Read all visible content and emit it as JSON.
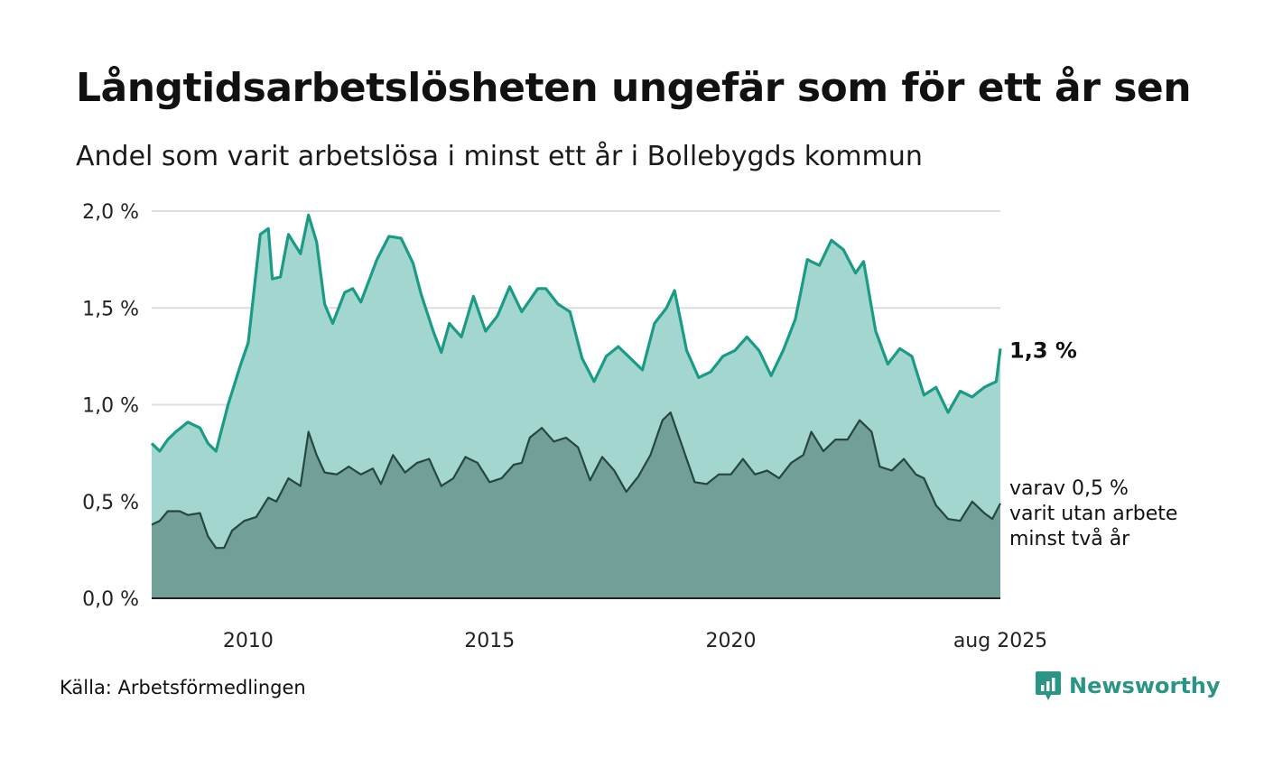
{
  "header": {
    "title": "Långtidsarbetslösheten ungefär som för ett år sen",
    "subtitle": "Andel som varit arbetslösa i minst ett år i Bollebygds kommun"
  },
  "footer": {
    "source": "Källa: Arbetsförmedlingen",
    "brand": "Newsworthy",
    "brand_icon": "newsworthy-logo-icon"
  },
  "colors": {
    "upper_line": "#1a9b86",
    "upper_fill": "#a3d6cf",
    "lower_line": "#26473f",
    "lower_fill": "#729f97",
    "grid": "#dddddd",
    "brand": "#2a9584"
  },
  "chart_data": {
    "type": "area",
    "x_start": "2008-01",
    "x_end": "2025-08",
    "x_interval": "month",
    "x_ticks": [
      {
        "date": "2010-01",
        "label": "2010"
      },
      {
        "date": "2015-01",
        "label": "2015"
      },
      {
        "date": "2020-01",
        "label": "2020"
      },
      {
        "date": "2025-08",
        "label": "aug 2025"
      }
    ],
    "ylim": [
      0,
      2.0
    ],
    "y_ticks": [
      {
        "value": 0.0,
        "label": "0,0 %"
      },
      {
        "value": 0.5,
        "label": "0,5 %"
      },
      {
        "value": 1.0,
        "label": "1,0 %"
      },
      {
        "value": 1.5,
        "label": "1,5 %"
      },
      {
        "value": 2.0,
        "label": "2,0 %"
      }
    ],
    "grid": true,
    "series": [
      {
        "key": "minst_ett_ar",
        "anchors": [
          [
            "2008-01",
            0.8
          ],
          [
            "2008-03",
            0.76
          ],
          [
            "2008-05",
            0.82
          ],
          [
            "2008-07",
            0.86
          ],
          [
            "2008-10",
            0.91
          ],
          [
            "2009-01",
            0.88
          ],
          [
            "2009-03",
            0.8
          ],
          [
            "2009-05",
            0.76
          ],
          [
            "2009-08",
            1.0
          ],
          [
            "2009-11",
            1.2
          ],
          [
            "2010-01",
            1.32
          ],
          [
            "2010-04",
            1.88
          ],
          [
            "2010-06",
            1.91
          ],
          [
            "2010-07",
            1.65
          ],
          [
            "2010-09",
            1.66
          ],
          [
            "2010-11",
            1.88
          ],
          [
            "2011-02",
            1.78
          ],
          [
            "2011-04",
            1.98
          ],
          [
            "2011-06",
            1.84
          ],
          [
            "2011-08",
            1.52
          ],
          [
            "2011-10",
            1.42
          ],
          [
            "2012-01",
            1.58
          ],
          [
            "2012-03",
            1.6
          ],
          [
            "2012-05",
            1.53
          ],
          [
            "2012-09",
            1.75
          ],
          [
            "2012-12",
            1.87
          ],
          [
            "2013-03",
            1.86
          ],
          [
            "2013-06",
            1.73
          ],
          [
            "2013-08",
            1.57
          ],
          [
            "2013-11",
            1.38
          ],
          [
            "2014-01",
            1.27
          ],
          [
            "2014-03",
            1.42
          ],
          [
            "2014-06",
            1.35
          ],
          [
            "2014-09",
            1.56
          ],
          [
            "2014-12",
            1.38
          ],
          [
            "2015-03",
            1.46
          ],
          [
            "2015-06",
            1.61
          ],
          [
            "2015-09",
            1.48
          ],
          [
            "2016-01",
            1.6
          ],
          [
            "2016-03",
            1.6
          ],
          [
            "2016-06",
            1.52
          ],
          [
            "2016-09",
            1.48
          ],
          [
            "2016-12",
            1.24
          ],
          [
            "2017-03",
            1.12
          ],
          [
            "2017-06",
            1.25
          ],
          [
            "2017-09",
            1.3
          ],
          [
            "2017-12",
            1.24
          ],
          [
            "2018-03",
            1.18
          ],
          [
            "2018-06",
            1.42
          ],
          [
            "2018-09",
            1.5
          ],
          [
            "2018-11",
            1.59
          ],
          [
            "2019-02",
            1.28
          ],
          [
            "2019-05",
            1.14
          ],
          [
            "2019-08",
            1.17
          ],
          [
            "2019-11",
            1.25
          ],
          [
            "2020-02",
            1.28
          ],
          [
            "2020-05",
            1.35
          ],
          [
            "2020-08",
            1.28
          ],
          [
            "2020-11",
            1.15
          ],
          [
            "2021-02",
            1.28
          ],
          [
            "2021-05",
            1.44
          ],
          [
            "2021-08",
            1.75
          ],
          [
            "2021-11",
            1.72
          ],
          [
            "2022-02",
            1.85
          ],
          [
            "2022-05",
            1.8
          ],
          [
            "2022-08",
            1.68
          ],
          [
            "2022-10",
            1.74
          ],
          [
            "2023-01",
            1.38
          ],
          [
            "2023-04",
            1.21
          ],
          [
            "2023-07",
            1.29
          ],
          [
            "2023-10",
            1.25
          ],
          [
            "2024-01",
            1.05
          ],
          [
            "2024-04",
            1.09
          ],
          [
            "2024-07",
            0.96
          ],
          [
            "2024-10",
            1.07
          ],
          [
            "2025-01",
            1.04
          ],
          [
            "2025-04",
            1.09
          ],
          [
            "2025-07",
            1.12
          ],
          [
            "2025-08",
            1.29
          ]
        ]
      },
      {
        "key": "varav_minst_tva_ar",
        "anchors": [
          [
            "2008-01",
            0.38
          ],
          [
            "2008-03",
            0.4
          ],
          [
            "2008-05",
            0.45
          ],
          [
            "2008-08",
            0.45
          ],
          [
            "2008-10",
            0.43
          ],
          [
            "2009-01",
            0.44
          ],
          [
            "2009-03",
            0.32
          ],
          [
            "2009-05",
            0.26
          ],
          [
            "2009-07",
            0.26
          ],
          [
            "2009-09",
            0.35
          ],
          [
            "2009-12",
            0.4
          ],
          [
            "2010-03",
            0.42
          ],
          [
            "2010-06",
            0.52
          ],
          [
            "2010-08",
            0.5
          ],
          [
            "2010-11",
            0.62
          ],
          [
            "2011-02",
            0.58
          ],
          [
            "2011-04",
            0.86
          ],
          [
            "2011-06",
            0.74
          ],
          [
            "2011-08",
            0.65
          ],
          [
            "2011-11",
            0.64
          ],
          [
            "2012-02",
            0.68
          ],
          [
            "2012-05",
            0.64
          ],
          [
            "2012-08",
            0.67
          ],
          [
            "2012-10",
            0.59
          ],
          [
            "2013-01",
            0.74
          ],
          [
            "2013-04",
            0.65
          ],
          [
            "2013-07",
            0.7
          ],
          [
            "2013-10",
            0.72
          ],
          [
            "2014-01",
            0.58
          ],
          [
            "2014-04",
            0.62
          ],
          [
            "2014-07",
            0.73
          ],
          [
            "2014-10",
            0.7
          ],
          [
            "2015-01",
            0.6
          ],
          [
            "2015-04",
            0.62
          ],
          [
            "2015-07",
            0.69
          ],
          [
            "2015-09",
            0.7
          ],
          [
            "2015-11",
            0.83
          ],
          [
            "2016-02",
            0.88
          ],
          [
            "2016-05",
            0.81
          ],
          [
            "2016-08",
            0.83
          ],
          [
            "2016-11",
            0.78
          ],
          [
            "2017-02",
            0.61
          ],
          [
            "2017-05",
            0.73
          ],
          [
            "2017-08",
            0.66
          ],
          [
            "2017-11",
            0.55
          ],
          [
            "2018-02",
            0.63
          ],
          [
            "2018-05",
            0.74
          ],
          [
            "2018-08",
            0.92
          ],
          [
            "2018-10",
            0.96
          ],
          [
            "2019-01",
            0.78
          ],
          [
            "2019-04",
            0.6
          ],
          [
            "2019-07",
            0.59
          ],
          [
            "2019-10",
            0.64
          ],
          [
            "2020-01",
            0.64
          ],
          [
            "2020-04",
            0.72
          ],
          [
            "2020-07",
            0.64
          ],
          [
            "2020-10",
            0.66
          ],
          [
            "2021-01",
            0.62
          ],
          [
            "2021-04",
            0.7
          ],
          [
            "2021-07",
            0.74
          ],
          [
            "2021-09",
            0.86
          ],
          [
            "2021-12",
            0.76
          ],
          [
            "2022-03",
            0.82
          ],
          [
            "2022-06",
            0.82
          ],
          [
            "2022-09",
            0.92
          ],
          [
            "2022-12",
            0.86
          ],
          [
            "2023-02",
            0.68
          ],
          [
            "2023-05",
            0.66
          ],
          [
            "2023-08",
            0.72
          ],
          [
            "2023-11",
            0.64
          ],
          [
            "2024-01",
            0.62
          ],
          [
            "2024-04",
            0.48
          ],
          [
            "2024-07",
            0.41
          ],
          [
            "2024-10",
            0.4
          ],
          [
            "2025-01",
            0.5
          ],
          [
            "2025-04",
            0.44
          ],
          [
            "2025-06",
            0.41
          ],
          [
            "2025-08",
            0.49
          ]
        ]
      }
    ],
    "annotations": {
      "upper_value": "1,3 %",
      "lower_lines": [
        "varav 0,5 %",
        "varit utan arbete",
        "minst två år"
      ]
    }
  }
}
